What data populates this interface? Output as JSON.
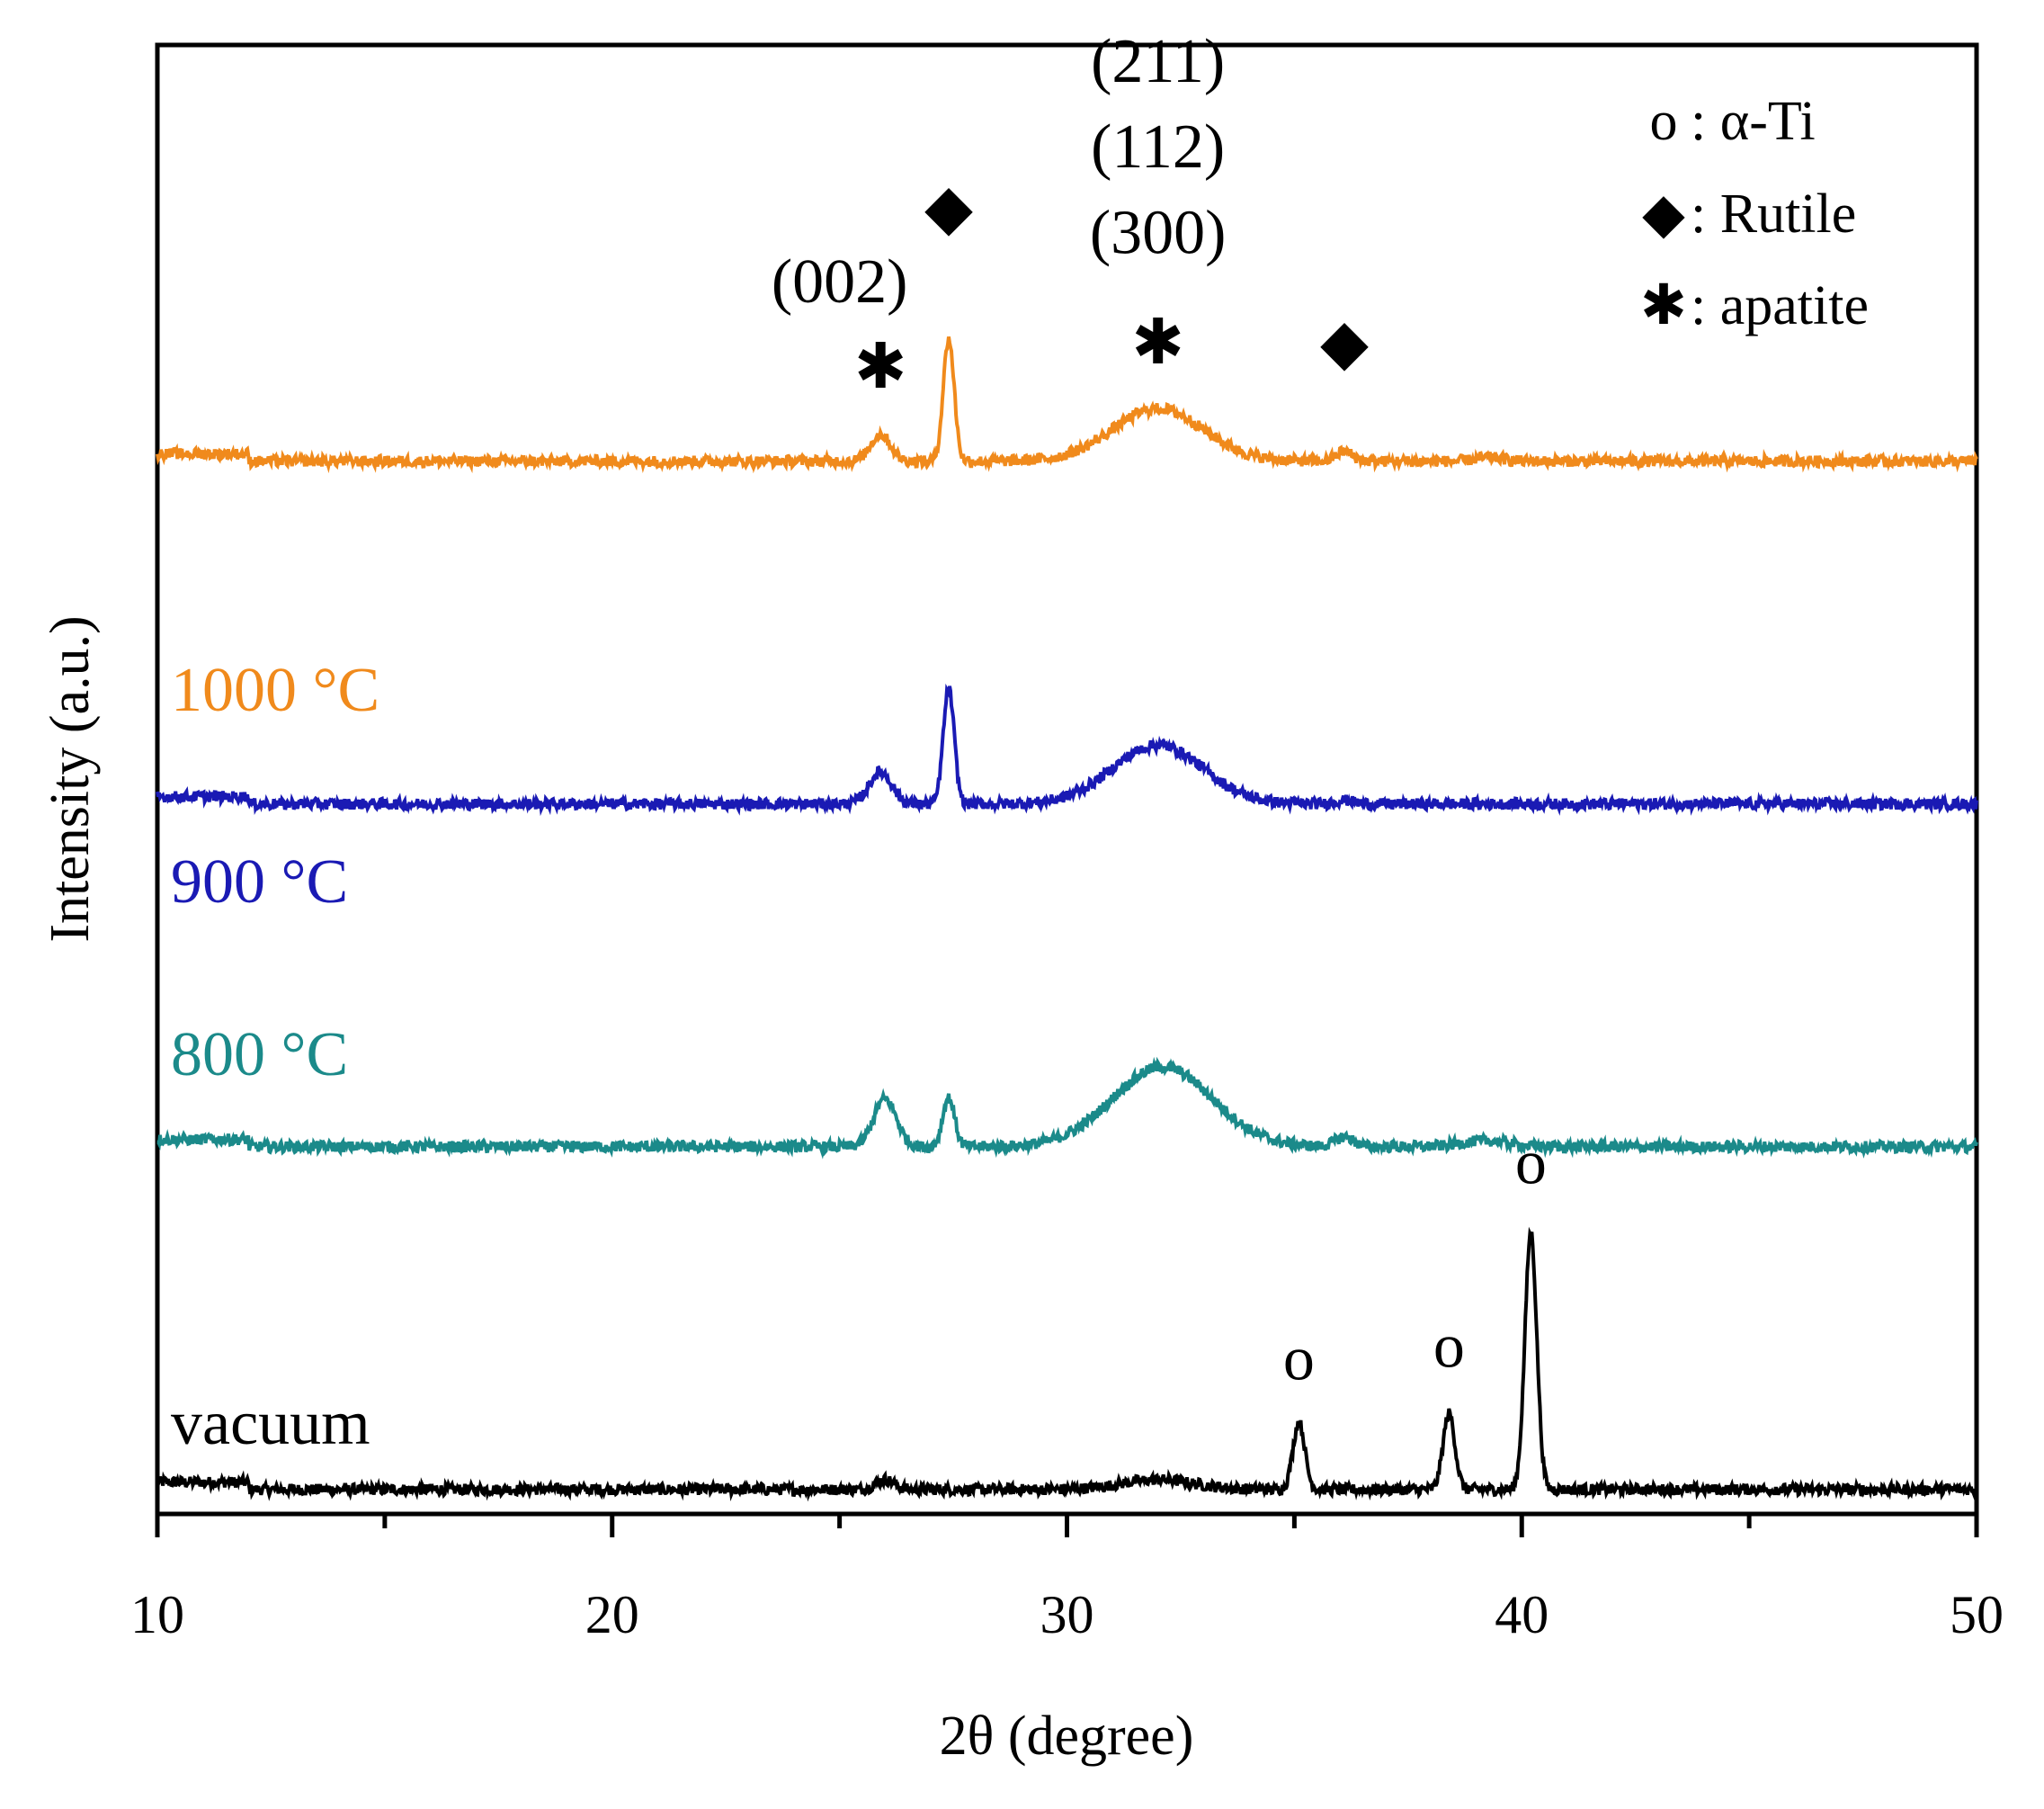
{
  "chart_data": {
    "type": "line",
    "title": "",
    "xlabel": "2θ (degree)",
    "ylabel": "Intensity (a.u.)",
    "xlim": [
      10,
      50
    ],
    "ylim": [
      0,
      120
    ],
    "x_ticks": [
      "10",
      "20",
      "30",
      "40",
      "50"
    ],
    "grid": false,
    "legend": {
      "position": "top-right",
      "entries": [
        {
          "symbol": "o",
          "label": ": α-Ti"
        },
        {
          "symbol": "◆",
          "label": ": Rutile"
        },
        {
          "symbol": "✱",
          "label": ": apatite"
        }
      ]
    },
    "series": [
      {
        "name": "vacuum",
        "label": "vacuum",
        "color": "#000000",
        "baseline": 2,
        "peaks": [
          {
            "x": 26.0,
            "height": 0.8,
            "width": 0.2
          },
          {
            "x": 32.0,
            "height": 0.8,
            "width": 0.8
          },
          {
            "x": 35.1,
            "height": 5.5,
            "width": 0.13
          },
          {
            "x": 38.4,
            "height": 6.2,
            "width": 0.13
          },
          {
            "x": 40.2,
            "height": 21.0,
            "width": 0.13
          }
        ]
      },
      {
        "name": "800 °C",
        "label": "800 °C",
        "color": "#1b8a8a",
        "baseline": 30,
        "peaks": [
          {
            "x": 26.0,
            "height": 3.9,
            "width": 0.25
          },
          {
            "x": 27.4,
            "height": 4.0,
            "width": 0.13
          },
          {
            "x": 32.1,
            "height": 6.5,
            "width": 1.1
          },
          {
            "x": 36.1,
            "height": 0.8,
            "width": 0.2
          },
          {
            "x": 39.2,
            "height": 0.5,
            "width": 0.5
          }
        ]
      },
      {
        "name": "900 °C",
        "label": "900 °C",
        "color": "#1a1ab4",
        "baseline": 58,
        "peaks": [
          {
            "x": 25.9,
            "height": 2.6,
            "width": 0.25
          },
          {
            "x": 27.4,
            "height": 9.4,
            "width": 0.12
          },
          {
            "x": 32.0,
            "height": 4.8,
            "width": 1.0
          },
          {
            "x": 36.1,
            "height": 0.3,
            "width": 0.2
          }
        ]
      },
      {
        "name": "1000 °C",
        "label": "1000 °C",
        "color": "#f08a1c",
        "baseline": 86,
        "peaks": [
          {
            "x": 25.9,
            "height": 2.2,
            "width": 0.22
          },
          {
            "x": 27.4,
            "height": 10.0,
            "width": 0.12
          },
          {
            "x": 32.0,
            "height": 4.3,
            "width": 1.0
          },
          {
            "x": 36.1,
            "height": 0.8,
            "width": 0.18
          },
          {
            "x": 39.3,
            "height": 0.3,
            "width": 0.3
          }
        ]
      }
    ],
    "annotations": [
      {
        "text": "o",
        "x": 35.1,
        "y": 11
      },
      {
        "text": "o",
        "x": 38.4,
        "y": 12
      },
      {
        "text": "o",
        "x": 40.2,
        "y": 27
      },
      {
        "text": "✱",
        "x": 25.9,
        "y": 92
      },
      {
        "text": "◆",
        "x": 27.4,
        "y": 105
      },
      {
        "text": "✱",
        "x": 32.0,
        "y": 94
      },
      {
        "text": "◆",
        "x": 36.1,
        "y": 94
      },
      {
        "text": "(002)",
        "x": 25.0,
        "y": 99
      },
      {
        "text": "(211)",
        "x": 32.0,
        "y": 117
      },
      {
        "text": "(112)",
        "x": 32.0,
        "y": 110
      },
      {
        "text": "(300)",
        "x": 32.0,
        "y": 103
      }
    ]
  }
}
